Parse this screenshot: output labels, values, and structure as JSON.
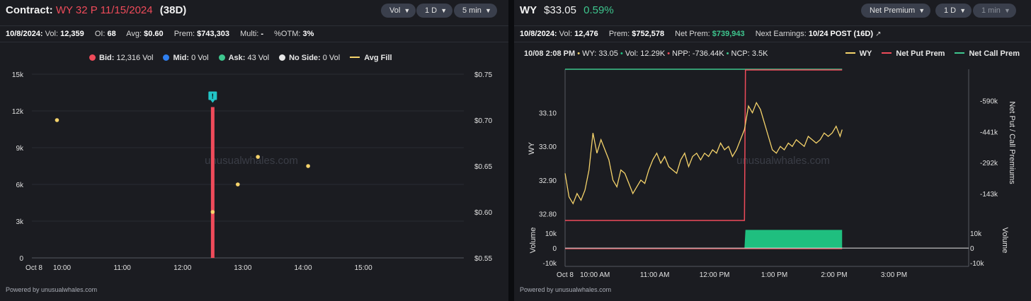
{
  "left": {
    "header": {
      "label": "Contract:",
      "contract": "WY 32 P 11/15/2024",
      "days": "(38D)"
    },
    "controls": {
      "metric": "Vol",
      "range": "1 D",
      "interval": "5 min"
    },
    "stats": {
      "date": "10/8/2024:",
      "vol_label": "Vol:",
      "vol": "12,359",
      "oi_label": "OI:",
      "oi": "68",
      "avg_label": "Avg:",
      "avg": "$0.60",
      "prem_label": "Prem:",
      "prem": "$743,303",
      "multi_label": "Multi:",
      "multi": "-",
      "otm_label": "%OTM:",
      "otm": "3%"
    },
    "legend": [
      {
        "name": "Bid:",
        "value": "12,316 Vol",
        "color": "#ef4b5a"
      },
      {
        "name": "Mid:",
        "value": "0 Vol",
        "color": "#2f7ff0"
      },
      {
        "name": "Ask:",
        "value": "43 Vol",
        "color": "#3ec68e"
      },
      {
        "name": "No Side:",
        "value": "0 Vol",
        "color": "#e8e8e8"
      },
      {
        "name": "Avg Fill",
        "value": "",
        "color": "#f5d36b"
      }
    ],
    "watermark": "unusualwhales.com",
    "footer": "Powered by unusualwhales.com",
    "alert_icon": "exclamation-marker-icon"
  },
  "right": {
    "header": {
      "ticker": "WY",
      "price": "$33.05",
      "change": "0.59%"
    },
    "controls": {
      "metric": "Net Premium",
      "range": "1 D",
      "interval": "1 min"
    },
    "stats": {
      "date": "10/8/2024:",
      "vol_label": "Vol:",
      "vol": "12,476",
      "prem_label": "Prem:",
      "prem": "$752,578",
      "netprem_label": "Net Prem:",
      "netprem": "$739,943",
      "earn_label": "Next Earnings:",
      "earn": "10/24 POST (16D)",
      "earn_icon": "external-link-icon"
    },
    "tooltip": {
      "time": "10/08 2:08 PM",
      "wy": "WY: 33.05",
      "vol": "Vol: 12.29K",
      "npp": "NPP: -736.44K",
      "ncp": "NCP: 3.5K"
    },
    "legend": [
      {
        "name": "WY",
        "color": "#f5d36b"
      },
      {
        "name": "Net Put Prem",
        "color": "#ef4b5a"
      },
      {
        "name": "Net Call Prem",
        "color": "#3ec68e"
      }
    ],
    "watermark": "unusualwhales.com",
    "footer": "Powered by unusualwhales.com"
  },
  "chart_data": [
    {
      "type": "bar",
      "title": "WY 32 P 11/15/2024 (38D)",
      "x_ticks": [
        "Oct 8",
        "10:00",
        "11:00",
        "12:00",
        "13:00",
        "14:00",
        "15:00"
      ],
      "y_ticks_left": [
        "0",
        "3k",
        "6k",
        "9k",
        "12k",
        "15k"
      ],
      "y_ticks_right": [
        "$0.55",
        "$0.60",
        "$0.65",
        "$0.70",
        "$0.75"
      ],
      "ylim_left": [
        0,
        15000
      ],
      "ylim_right": [
        0.55,
        0.75
      ],
      "grid": true,
      "legend_position": "top-center",
      "series": [
        {
          "name": "Bid",
          "kind": "bar",
          "color": "#ef4b5a",
          "x": [
            "12:30"
          ],
          "values": [
            12316
          ]
        },
        {
          "name": "Avg Fill",
          "kind": "scatter",
          "color": "#f5d36b",
          "x": [
            "09:55",
            "12:30",
            "12:55",
            "13:15",
            "14:05"
          ],
          "values": [
            0.7,
            0.6,
            0.63,
            0.66,
            0.65
          ]
        }
      ]
    },
    {
      "type": "line",
      "title": "WY",
      "x_ticks": [
        "Oct 8",
        "10:00 AM",
        "11:00 AM",
        "12:00 PM",
        "1:00 PM",
        "2:00 PM",
        "3:00 PM"
      ],
      "ylabel": "WY",
      "ylabel_right": "Net Put / Call Premiums",
      "volume_label": "Volume",
      "y_ticks": [
        "32.80",
        "32.90",
        "33.00",
        "33.10"
      ],
      "y_ticks_right": [
        "-143k",
        "-292k",
        "-441k",
        "-590k"
      ],
      "volume_ticks_left": [
        "10k",
        "0",
        "-10k"
      ],
      "volume_ticks_right": [
        "10k",
        "0",
        "-10k"
      ],
      "ylim": [
        32.78,
        33.2
      ],
      "ylim_right": [
        -15000,
        -740000
      ],
      "volume_lim": [
        -10000,
        12000
      ],
      "grid": false,
      "legend_position": "top-right",
      "series": [
        {
          "name": "WY",
          "color": "#f5d36b",
          "x": [
            "09:30",
            "09:34",
            "09:38",
            "09:42",
            "09:46",
            "09:50",
            "09:54",
            "09:58",
            "10:02",
            "10:06",
            "10:10",
            "10:14",
            "10:18",
            "10:22",
            "10:26",
            "10:30",
            "10:34",
            "10:38",
            "10:42",
            "10:46",
            "10:50",
            "10:54",
            "10:58",
            "11:02",
            "11:06",
            "11:10",
            "11:14",
            "11:18",
            "11:22",
            "11:26",
            "11:30",
            "11:34",
            "11:38",
            "11:42",
            "11:46",
            "11:50",
            "11:54",
            "11:58",
            "12:02",
            "12:06",
            "12:10",
            "12:14",
            "12:18",
            "12:22",
            "12:26",
            "12:30",
            "12:34",
            "12:38",
            "12:42",
            "12:46",
            "12:50",
            "12:54",
            "12:58",
            "13:02",
            "13:06",
            "13:10",
            "13:14",
            "13:18",
            "13:22",
            "13:26",
            "13:30",
            "13:34",
            "13:38",
            "13:42",
            "13:46",
            "13:50",
            "13:54",
            "13:58",
            "14:02",
            "14:06",
            "14:08"
          ],
          "values": [
            32.92,
            32.85,
            32.83,
            32.86,
            32.84,
            32.87,
            32.93,
            33.04,
            32.98,
            33.02,
            32.99,
            32.96,
            32.9,
            32.88,
            32.93,
            32.92,
            32.89,
            32.86,
            32.88,
            32.9,
            32.89,
            32.93,
            32.96,
            32.98,
            32.95,
            32.97,
            32.94,
            32.93,
            32.92,
            32.96,
            32.98,
            32.94,
            32.97,
            32.98,
            32.96,
            32.98,
            32.97,
            32.99,
            32.98,
            33.01,
            32.99,
            33.0,
            32.97,
            32.99,
            33.02,
            33.05,
            33.12,
            33.1,
            33.13,
            33.11,
            33.07,
            33.03,
            32.99,
            32.98,
            33.0,
            32.99,
            33.01,
            33.0,
            33.02,
            33.01,
            33.0,
            33.03,
            33.02,
            33.01,
            33.02,
            33.04,
            33.03,
            33.04,
            33.06,
            33.03,
            33.05
          ]
        },
        {
          "name": "Net Put Prem",
          "color": "#ef4b5a",
          "x": [
            "09:30",
            "12:30",
            "12:31",
            "14:08"
          ],
          "values": [
            -15000,
            -15000,
            -736440,
            -736440
          ]
        },
        {
          "name": "Net Call Prem",
          "color": "#3ec68e",
          "x": [
            "09:30",
            "14:08"
          ],
          "values": [
            3500,
            3500
          ]
        },
        {
          "name": "Volume",
          "color": "#1fbf7f",
          "x": [
            "09:30",
            "12:30",
            "12:31",
            "14:08"
          ],
          "values": [
            0,
            0,
            12290,
            12290
          ]
        }
      ]
    }
  ]
}
